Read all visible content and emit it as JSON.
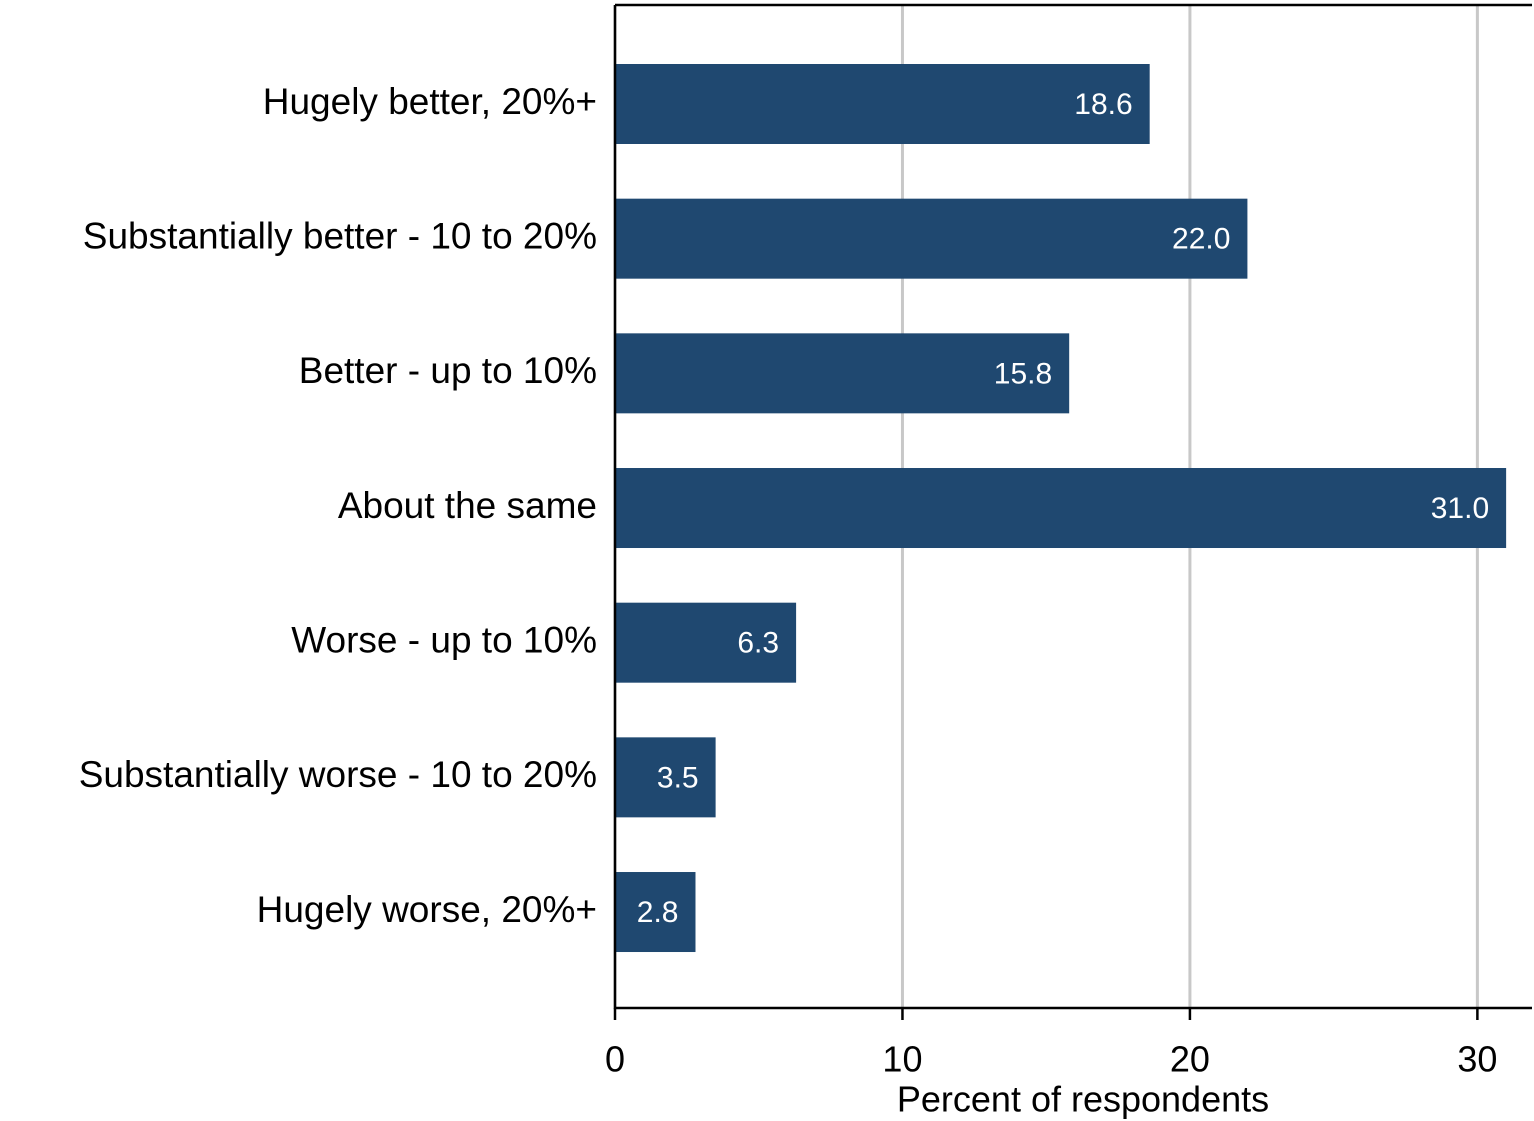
{
  "chart_data": {
    "type": "hbar",
    "x_label": "Percent of respondents",
    "categories": [
      "Hugely better, 20%+",
      "Substantially better - 10 to 20%",
      "Better - up to 10%",
      "About the same",
      "Worse - up to 10%",
      "Substantially worse - 10 to 20%",
      "Hugely worse, 20%+"
    ],
    "values": [
      18.6,
      22.0,
      15.8,
      31.0,
      6.3,
      3.5,
      2.8
    ],
    "value_labels": [
      "18.6",
      "22.0",
      "15.8",
      "31.0",
      "6.3",
      "3.5",
      "2.8"
    ],
    "color": "#1f4870",
    "xlim": [
      0,
      31.9
    ],
    "xticks": [
      0,
      10,
      20,
      30
    ],
    "grid": true
  }
}
